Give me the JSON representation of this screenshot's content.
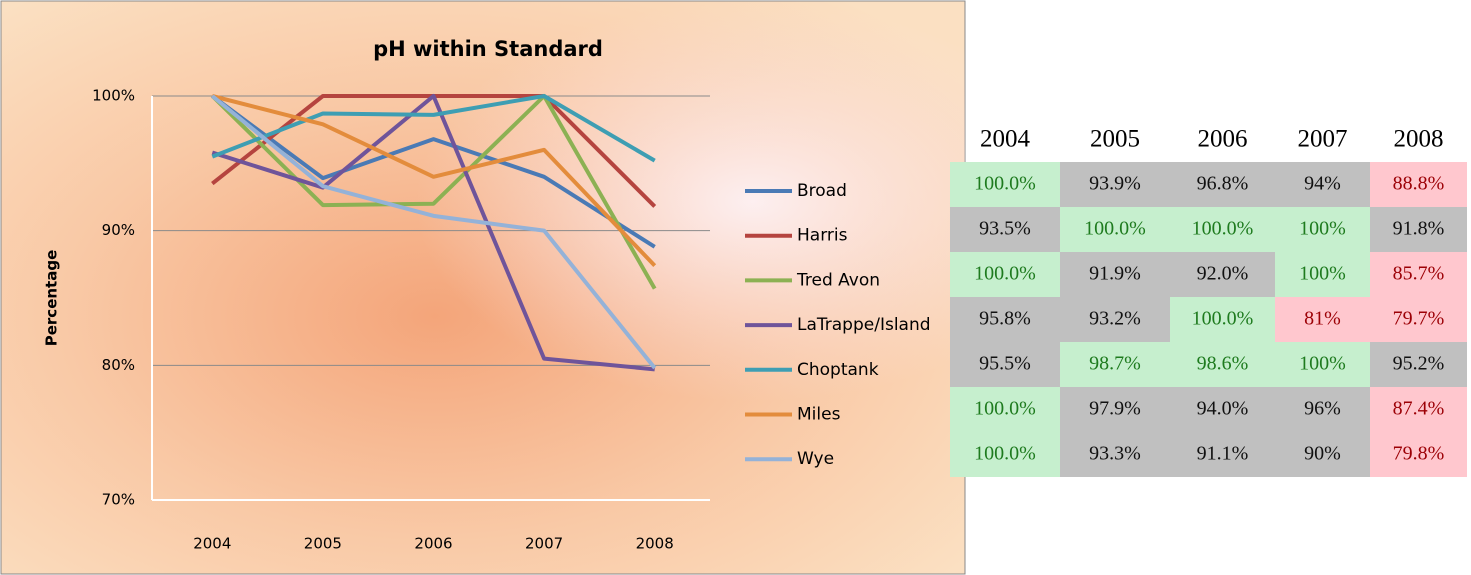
{
  "chart_data": {
    "type": "line",
    "title": "pH within Standard",
    "ylabel": "Percentage",
    "categories": [
      "2004",
      "2005",
      "2006",
      "2007",
      "2008"
    ],
    "series": [
      {
        "name": "Broad",
        "color": "#4a7ab5",
        "values": [
          100,
          93.9,
          96.8,
          94,
          88.8
        ]
      },
      {
        "name": "Harris",
        "color": "#b5443f",
        "values": [
          93.5,
          100,
          100,
          100,
          91.8
        ]
      },
      {
        "name": "Tred Avon",
        "color": "#8cb153",
        "values": [
          100,
          91.9,
          92.0,
          100,
          85.7
        ]
      },
      {
        "name": "LaTrappe/Island",
        "color": "#6f549a",
        "values": [
          95.8,
          93.2,
          100,
          80.5,
          79.7
        ]
      },
      {
        "name": "Choptank",
        "color": "#3e9eb3",
        "values": [
          95.5,
          98.7,
          98.6,
          100,
          95.2
        ]
      },
      {
        "name": "Miles",
        "color": "#e38c3c",
        "values": [
          100,
          97.9,
          94.0,
          96,
          87.4
        ]
      },
      {
        "name": "Wye",
        "color": "#94b2d8",
        "values": [
          100,
          93.3,
          91.1,
          90,
          79.8
        ]
      }
    ],
    "ylim": [
      70,
      100
    ],
    "yticks": [
      {
        "value": 70,
        "label": "70%"
      },
      {
        "value": 80,
        "label": "80%"
      },
      {
        "value": 90,
        "label": "90%"
      },
      {
        "value": 100,
        "label": "100%"
      }
    ],
    "grid": true,
    "legend": "right"
  },
  "table": {
    "header": [
      "2004",
      "2005",
      "2006",
      "2007",
      "2008"
    ],
    "rows": [
      [
        "100.0%",
        "93.9%",
        "96.8%",
        "94%",
        "88.8%"
      ],
      [
        "93.5%",
        "100.0%",
        "100.0%",
        "100%",
        "91.8%"
      ],
      [
        "100.0%",
        "91.9%",
        "92.0%",
        "100%",
        "85.7%"
      ],
      [
        "95.8%",
        "93.2%",
        "100.0%",
        "81%",
        "79.7%"
      ],
      [
        "95.5%",
        "98.7%",
        "98.6%",
        "100%",
        "95.2%"
      ],
      [
        "100.0%",
        "97.9%",
        "94.0%",
        "96%",
        "87.4%"
      ],
      [
        "100.0%",
        "93.3%",
        "91.1%",
        "90%",
        "79.8%"
      ]
    ],
    "status": [
      [
        "good",
        "neutral",
        "neutral",
        "neutral",
        "bad"
      ],
      [
        "neutral",
        "good",
        "good",
        "good",
        "neutral"
      ],
      [
        "good",
        "neutral",
        "neutral",
        "good",
        "bad"
      ],
      [
        "neutral",
        "neutral",
        "good",
        "bad",
        "bad"
      ],
      [
        "neutral",
        "good",
        "good",
        "good",
        "neutral"
      ],
      [
        "good",
        "neutral",
        "neutral",
        "neutral",
        "bad"
      ],
      [
        "good",
        "neutral",
        "neutral",
        "neutral",
        "bad"
      ]
    ]
  }
}
